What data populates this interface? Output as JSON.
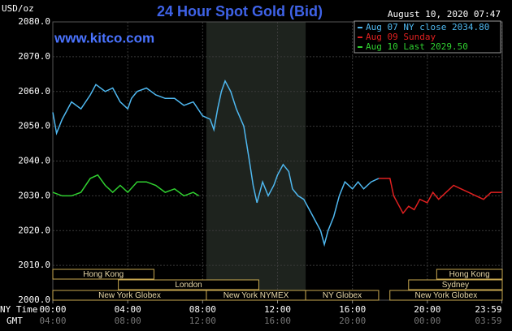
{
  "chart_data": {
    "type": "line",
    "title": "24 Hour Spot Gold (Bid)",
    "y_label": "USD/oz",
    "watermark": "www.kitco.com",
    "timestamp": "August 10, 2020 07:47",
    "x_label": "NY Time",
    "x2_label": "GMT",
    "xlim": [
      0,
      24
    ],
    "xticks": [
      {
        "value": 0,
        "label": "00:00"
      },
      {
        "value": 4,
        "label": "04:00"
      },
      {
        "value": 8,
        "label": "08:00"
      },
      {
        "value": 12,
        "label": "12:00"
      },
      {
        "value": 16,
        "label": "16:00"
      },
      {
        "value": 20,
        "label": "20:00"
      },
      {
        "value": 23.98,
        "label": "23:59"
      }
    ],
    "x2tick_labels": [
      "04:00",
      "08:00",
      "12:00",
      "16:00",
      "20:00",
      "00:00",
      "03:59"
    ],
    "ylim": [
      2000,
      2080
    ],
    "yticks": [
      {
        "value": 2000,
        "label": "2000.0"
      },
      {
        "value": 2010,
        "label": "2010.0"
      },
      {
        "value": 2020,
        "label": "2020.0"
      },
      {
        "value": 2030,
        "label": "2030.0"
      },
      {
        "value": 2040,
        "label": "2040.0"
      },
      {
        "value": 2050,
        "label": "2050.0"
      },
      {
        "value": 2060,
        "label": "2060.0"
      },
      {
        "value": 2070,
        "label": "2070.0"
      },
      {
        "value": 2080,
        "label": "2080.0"
      }
    ],
    "grid": true,
    "highlight": [
      8.2,
      13.5
    ],
    "series": [
      {
        "name": "Aug 07 NY close 2034.80",
        "color": "#4fb8f0",
        "x": [
          0,
          0.2,
          0.5,
          1,
          1.5,
          2,
          2.3,
          2.8,
          3.2,
          3.6,
          4,
          4.2,
          4.5,
          5,
          5.5,
          6,
          6.5,
          7,
          7.5,
          8,
          8.4,
          8.6,
          8.8,
          9,
          9.2,
          9.5,
          9.8,
          10.2,
          10.5,
          10.7,
          10.9,
          11.2,
          11.5,
          11.8,
          12,
          12.3,
          12.6,
          12.8,
          13.1,
          13.4,
          13.7,
          14,
          14.3,
          14.5,
          14.7,
          15,
          15.3,
          15.6,
          16,
          16.3,
          16.6,
          17,
          17.4
        ],
        "values": [
          2054,
          2048,
          2052,
          2057,
          2055,
          2059,
          2062,
          2060,
          2061,
          2057,
          2055,
          2058,
          2060,
          2061,
          2059,
          2058,
          2058,
          2056,
          2057,
          2053,
          2052,
          2049,
          2055,
          2060,
          2063,
          2060,
          2055,
          2050,
          2040,
          2033,
          2028,
          2034,
          2030,
          2033,
          2036,
          2039,
          2037,
          2032,
          2030,
          2029,
          2026,
          2023,
          2020,
          2016,
          2020,
          2024,
          2030,
          2034,
          2032,
          2034,
          2032,
          2034,
          2035
        ]
      },
      {
        "name": "Aug 09 Sunday",
        "color": "#e02020",
        "x": [
          17.4,
          18,
          18.2,
          18.5,
          18.7,
          19,
          19.3,
          19.6,
          20,
          20.3,
          20.6,
          21,
          21.4,
          21.8,
          22.2,
          22.6,
          23,
          23.4,
          23.98
        ],
        "values": [
          2035,
          2035,
          2030,
          2027,
          2025,
          2027,
          2026,
          2029,
          2028,
          2031,
          2029,
          2031,
          2033,
          2032,
          2031,
          2030,
          2029,
          2031,
          2031
        ]
      },
      {
        "name": "Aug 10 Last 2029.50",
        "color": "#30d030",
        "x": [
          0,
          0.5,
          1,
          1.5,
          2,
          2.4,
          2.8,
          3.2,
          3.6,
          4,
          4.5,
          5,
          5.5,
          6,
          6.5,
          7,
          7.5,
          7.8
        ],
        "values": [
          2031,
          2030,
          2030,
          2031,
          2035,
          2036,
          2033,
          2031,
          2033,
          2031,
          2034,
          2034,
          2033,
          2031,
          2032,
          2030,
          2031,
          2030
        ]
      }
    ],
    "sessions": [
      {
        "label": "Hong Kong",
        "row": 0,
        "start": 0,
        "end": 5.4
      },
      {
        "label": "Hong Kong",
        "row": 0,
        "start": 20.5,
        "end": 24
      },
      {
        "label": "London",
        "row": 1,
        "start": 3.5,
        "end": 11
      },
      {
        "label": "Sydney",
        "row": 1,
        "start": 19,
        "end": 24
      },
      {
        "label": "New York Globex",
        "row": 2,
        "start": 0,
        "end": 8.2
      },
      {
        "label": "New York NYMEX",
        "row": 2,
        "start": 8.2,
        "end": 13.5
      },
      {
        "label": "NY Globex",
        "row": 2,
        "start": 13.5,
        "end": 17.4
      },
      {
        "label": "New York Globex",
        "row": 2,
        "start": 18,
        "end": 24
      }
    ]
  }
}
